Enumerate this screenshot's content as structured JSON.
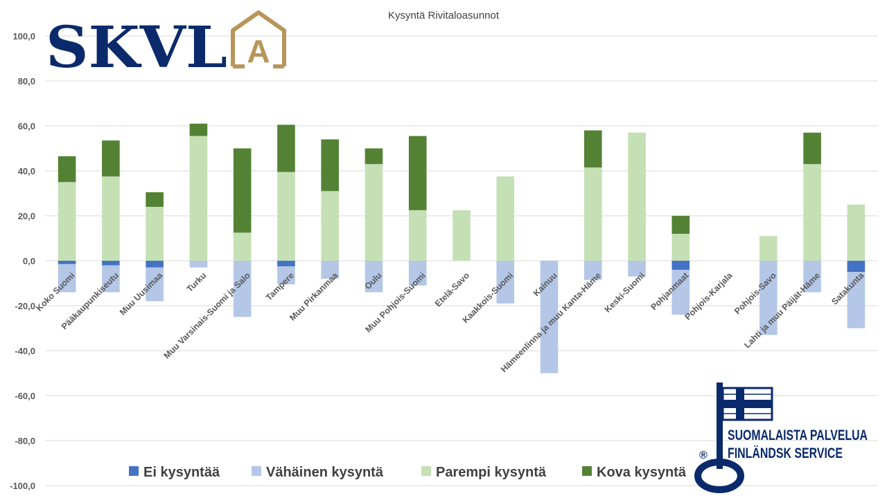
{
  "logos": {
    "skvl_text": "SKVL",
    "skvl_mark": "A",
    "badge_line1": "SUOMALAISTA PALVELUA",
    "badge_line2": "FINLÄNDSK SERVICE",
    "badge_registered": "®"
  },
  "colors": {
    "ei": "#4472c4",
    "vahainen": "#b4c7e7",
    "parempi": "#c5e0b4",
    "kova": "#548235",
    "skvl_blue": "#0a2a6b",
    "skvl_gold": "#b8955a"
  },
  "chart_data": {
    "type": "bar",
    "stacked": true,
    "title": "Kysyntä Rivitaloasunnot",
    "ylim": [
      -100,
      100
    ],
    "yticks": [
      100,
      80,
      60,
      40,
      20,
      0,
      -20,
      -40,
      -60,
      -80,
      -100
    ],
    "ytick_labels": [
      "100,0",
      "80,0",
      "60,0",
      "40,0",
      "20,0",
      "0,0",
      "-20,0",
      "-40,0",
      "-60,0",
      "-80,0",
      "-100,0"
    ],
    "grid": true,
    "legend_position": "bottom",
    "categories": [
      "Koko Suomi",
      "Pääkaupunkiseutu",
      "Muu Uusimaa",
      "Turku",
      "Muu Varsinais-Suomi ja Salo",
      "Tampere",
      "Muu Pirkanmaa",
      "Oulu",
      "Muu Pohjois-Suomi",
      "Etelä-Savo",
      "Kaakkois-Suomi",
      "Kainuu",
      "Hämeenlinna ja muu Kanta-Häme",
      "Keski-Suomi",
      "Pohjanmaat",
      "Pohjois-Karjala",
      "Pohjois-Savo",
      "Lahti ja muu Päijät-Häme",
      "Satakunta"
    ],
    "series": [
      {
        "name": "Ei kysyntää",
        "key": "ei",
        "direction": "negative",
        "values": [
          1.5,
          2,
          3,
          0,
          0,
          2.5,
          0,
          0,
          0,
          0,
          0,
          0,
          0,
          0,
          4,
          0,
          0,
          0,
          5
        ]
      },
      {
        "name": "Vähäinen kysyntä",
        "key": "vahainen",
        "direction": "negative",
        "values": [
          12.5,
          12,
          15,
          3,
          25,
          8,
          8,
          14,
          11,
          0,
          19,
          50,
          8.5,
          7,
          20,
          0,
          33,
          14,
          25
        ]
      },
      {
        "name": "Parempi kysyntä",
        "key": "parempi",
        "direction": "positive",
        "values": [
          35,
          37.5,
          24,
          55.5,
          12.5,
          39.5,
          31,
          43,
          22.5,
          22.5,
          37.5,
          0,
          41.5,
          57,
          12,
          0,
          11,
          43,
          25
        ]
      },
      {
        "name": "Kova kysyntä",
        "key": "kova",
        "direction": "positive",
        "values": [
          11.5,
          16,
          6.5,
          5.5,
          37.5,
          21,
          23,
          7,
          33,
          0,
          0,
          0,
          16.5,
          0,
          8,
          0,
          0,
          14,
          0
        ]
      }
    ]
  }
}
